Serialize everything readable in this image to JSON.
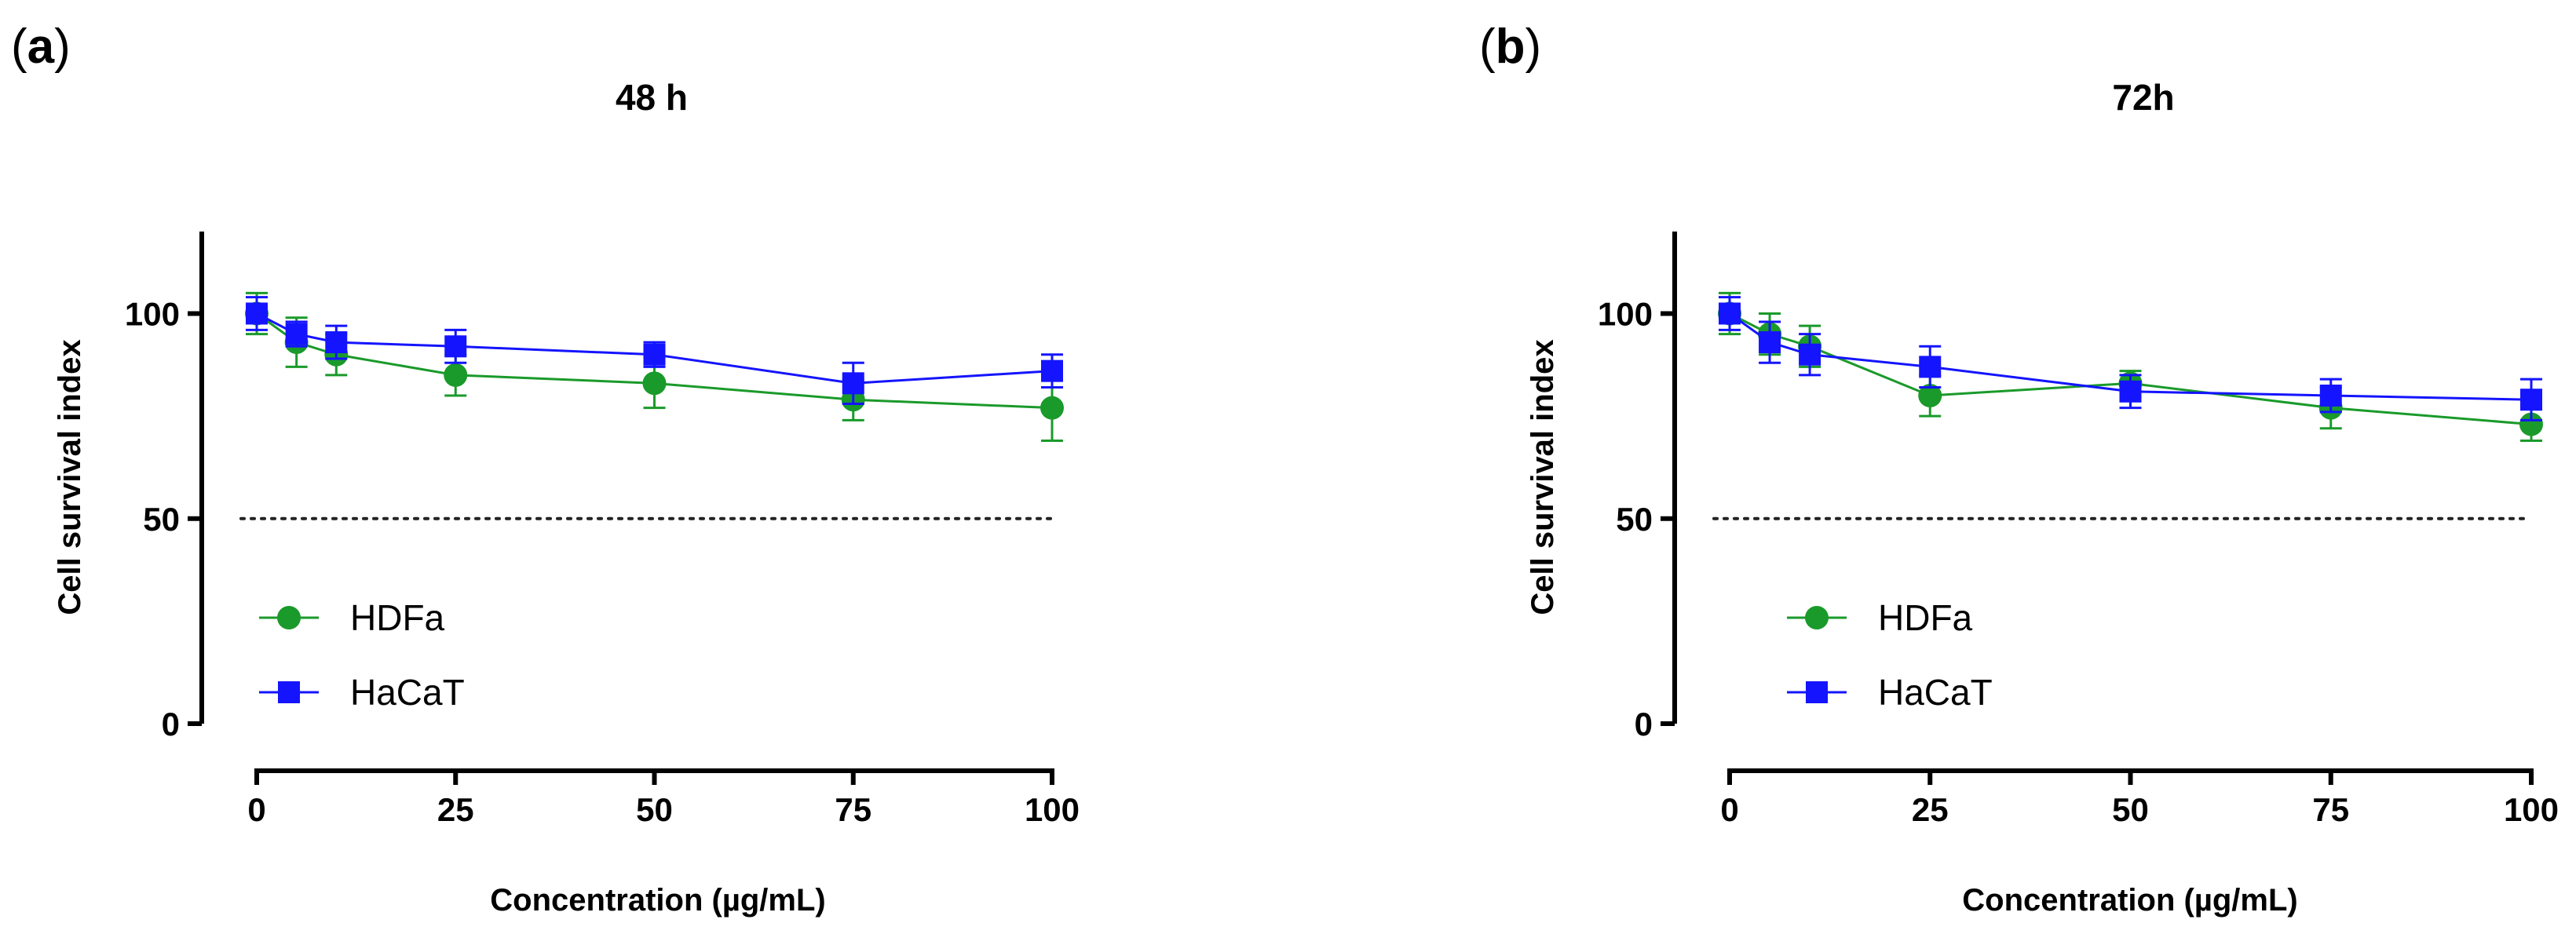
{
  "chart_data": [
    {
      "type": "line",
      "panel_label": "a",
      "title": "48 h",
      "xlabel": "Concentration (µg/mL)",
      "ylabel": "Cell survival index",
      "x_ticks": [
        "0",
        "25",
        "50",
        "75",
        "100"
      ],
      "y_ticks": [
        "0",
        "50",
        "100"
      ],
      "xlim": [
        0,
        100
      ],
      "ylim": [
        0,
        120
      ],
      "reference_line": {
        "y": 50,
        "style": "dotted"
      },
      "legend_position": "bottom-left",
      "x": [
        0,
        5,
        10,
        25,
        50,
        75,
        100
      ],
      "series": [
        {
          "name": "HDFa",
          "color": "#1a9a2a",
          "marker": "circle",
          "values": [
            100,
            93,
            90,
            85,
            83,
            79,
            77
          ],
          "errors": [
            5,
            6,
            5,
            5,
            6,
            5,
            8
          ]
        },
        {
          "name": "HaCaT",
          "color": "#1414ff",
          "marker": "square",
          "values": [
            100,
            95,
            93,
            92,
            90,
            83,
            86
          ],
          "errors": [
            4,
            3,
            4,
            4,
            3,
            5,
            4
          ]
        }
      ]
    },
    {
      "type": "line",
      "panel_label": "b",
      "title": "72h",
      "xlabel": "Concentration (µg/mL)",
      "ylabel": "Cell survival index",
      "x_ticks": [
        "0",
        "25",
        "50",
        "75",
        "100"
      ],
      "y_ticks": [
        "0",
        "50",
        "100"
      ],
      "xlim": [
        0,
        100
      ],
      "ylim": [
        0,
        120
      ],
      "reference_line": {
        "y": 50,
        "style": "dotted"
      },
      "legend_position": "bottom-left",
      "x": [
        0,
        5,
        10,
        25,
        50,
        75,
        100
      ],
      "series": [
        {
          "name": "HDFa",
          "color": "#1a9a2a",
          "marker": "circle",
          "values": [
            100,
            95,
            92,
            80,
            83,
            77,
            73
          ],
          "errors": [
            5,
            5,
            5,
            5,
            3,
            5,
            4
          ]
        },
        {
          "name": "HaCaT",
          "color": "#1414ff",
          "marker": "square",
          "values": [
            100,
            93,
            90,
            87,
            81,
            80,
            79
          ],
          "errors": [
            4,
            5,
            5,
            5,
            4,
            4,
            5
          ]
        }
      ]
    }
  ]
}
